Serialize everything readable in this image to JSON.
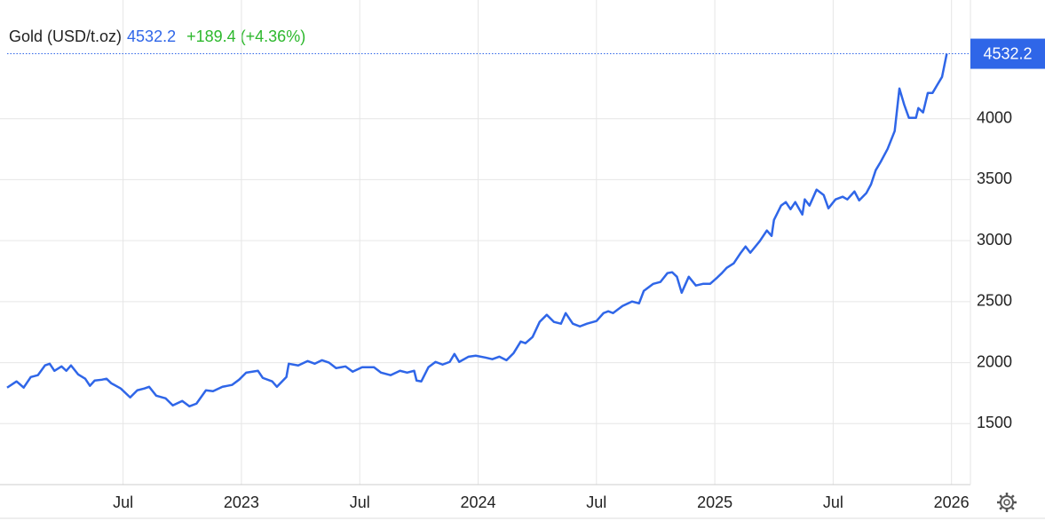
{
  "chart_data": {
    "type": "line",
    "title": "Gold (USD/t.oz)",
    "price": 4532.2,
    "change": "+189.4 (+4.36%)",
    "x": [
      2022.01,
      2022.05,
      2022.08,
      2022.11,
      2022.14,
      2022.17,
      2022.19,
      2022.21,
      2022.24,
      2022.26,
      2022.28,
      2022.31,
      2022.34,
      2022.36,
      2022.38,
      2022.41,
      2022.43,
      2022.45,
      2022.49,
      2022.53,
      2022.56,
      2022.59,
      2022.61,
      2022.64,
      2022.68,
      2022.71,
      2022.75,
      2022.78,
      2022.81,
      2022.85,
      2022.88,
      2022.92,
      2022.96,
      2022.99,
      2023.02,
      2023.07,
      2023.09,
      2023.13,
      2023.15,
      2023.19,
      2023.2,
      2023.24,
      2023.28,
      2023.31,
      2023.34,
      2023.37,
      2023.4,
      2023.44,
      2023.47,
      2023.51,
      2023.56,
      2023.59,
      2023.63,
      2023.67,
      2023.7,
      2023.73,
      2023.74,
      2023.76,
      2023.79,
      2023.82,
      2023.85,
      2023.88,
      2023.9,
      2023.92,
      2023.96,
      2023.99,
      2024.03,
      2024.06,
      2024.09,
      2024.12,
      2024.15,
      2024.18,
      2024.2,
      2024.23,
      2024.26,
      2024.29,
      2024.32,
      2024.35,
      2024.37,
      2024.4,
      2024.43,
      2024.46,
      2024.5,
      2024.53,
      2024.55,
      2024.57,
      2024.61,
      2024.65,
      2024.68,
      2024.7,
      2024.74,
      2024.77,
      2024.8,
      2024.82,
      2024.84,
      2024.86,
      2024.89,
      2024.92,
      2024.95,
      2024.98,
      2025.01,
      2025.03,
      2025.05,
      2025.08,
      2025.11,
      2025.13,
      2025.15,
      2025.19,
      2025.22,
      2025.24,
      2025.25,
      2025.28,
      2025.3,
      2025.32,
      2025.34,
      2025.37,
      2025.38,
      2025.4,
      2025.43,
      2025.46,
      2025.48,
      2025.51,
      2025.54,
      2025.56,
      2025.59,
      2025.61,
      2025.64,
      2025.66,
      2025.68,
      2025.7,
      2025.73,
      2025.76,
      2025.78,
      2025.8,
      2025.82,
      2025.85,
      2025.86,
      2025.88,
      2025.9,
      2025.92,
      2025.94,
      2025.96,
      2025.98
    ],
    "series": [
      {
        "name": "Gold",
        "color": "#2f66e8",
        "values": [
          1795,
          1846,
          1795,
          1882,
          1897,
          1977,
          1991,
          1933,
          1969,
          1933,
          1977,
          1904,
          1868,
          1810,
          1853,
          1860,
          1868,
          1831,
          1788,
          1715,
          1773,
          1788,
          1802,
          1729,
          1707,
          1649,
          1686,
          1642,
          1664,
          1773,
          1766,
          1802,
          1817,
          1860,
          1918,
          1933,
          1875,
          1846,
          1802,
          1882,
          1991,
          1977,
          2013,
          1991,
          2020,
          2000,
          1955,
          1969,
          1926,
          1962,
          1962,
          1918,
          1897,
          1933,
          1918,
          1933,
          1853,
          1846,
          1962,
          2006,
          1984,
          2006,
          2071,
          2006,
          2049,
          2057,
          2042,
          2028,
          2049,
          2020,
          2078,
          2173,
          2159,
          2210,
          2334,
          2392,
          2334,
          2319,
          2406,
          2319,
          2297,
          2319,
          2341,
          2406,
          2421,
          2406,
          2464,
          2501,
          2486,
          2588,
          2646,
          2661,
          2734,
          2741,
          2704,
          2573,
          2704,
          2632,
          2646,
          2646,
          2697,
          2734,
          2777,
          2814,
          2901,
          2952,
          2901,
          2996,
          3083,
          3039,
          3170,
          3287,
          3316,
          3258,
          3316,
          3214,
          3338,
          3287,
          3418,
          3374,
          3265,
          3338,
          3360,
          3338,
          3403,
          3330,
          3389,
          3461,
          3578,
          3643,
          3752,
          3898,
          4247,
          4116,
          4007,
          4007,
          4087,
          4051,
          4211,
          4211,
          4277,
          4342,
          4532.2
        ]
      }
    ],
    "xlim": [
      2021.98,
      2026.08
    ],
    "xticks": [
      {
        "value": 2022.5,
        "label": "Jul"
      },
      2023,
      {
        "value": 2023.5,
        "label": "Jul"
      },
      2024,
      {
        "value": 2024.5,
        "label": "Jul"
      },
      2025,
      {
        "value": 2025.5,
        "label": "Jul"
      },
      2026
    ],
    "ylim": [
      1000,
      4900
    ],
    "yticks": [
      1500,
      2000,
      2500,
      3000,
      3500,
      4000
    ],
    "grid": true
  }
}
